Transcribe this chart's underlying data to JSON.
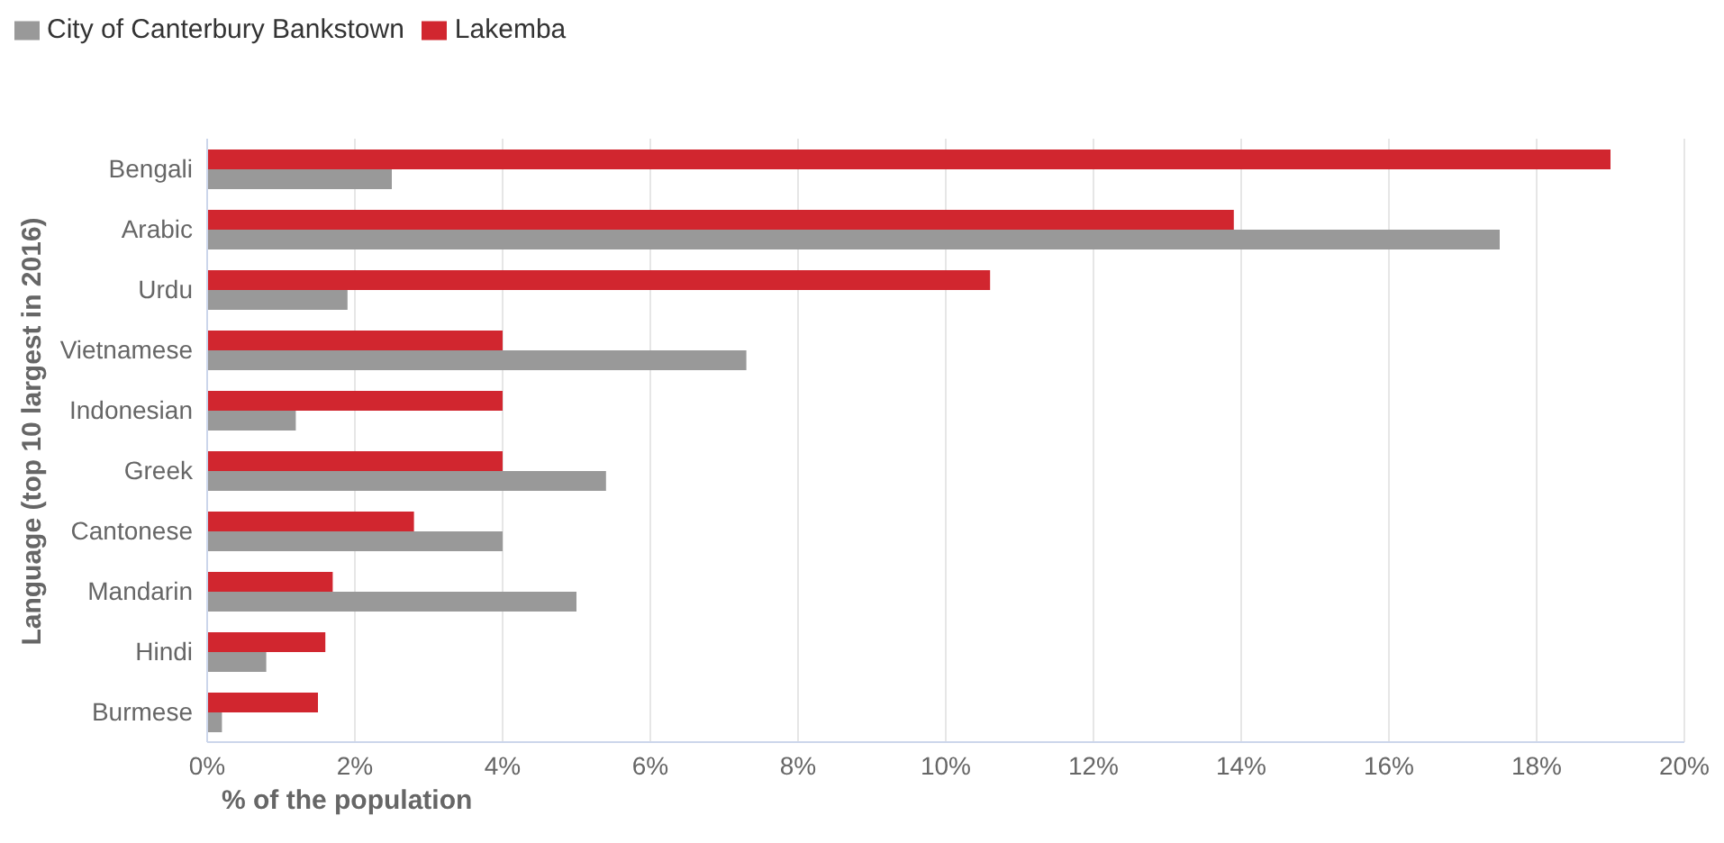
{
  "chart_data": {
    "type": "bar",
    "orientation": "horizontal",
    "xlabel": "% of the population",
    "ylabel": "Language (top 10 largest in 2016)",
    "categories": [
      "Bengali",
      "Arabic",
      "Urdu",
      "Vietnamese",
      "Indonesian",
      "Greek",
      "Cantonese",
      "Mandarin",
      "Hindi",
      "Burmese"
    ],
    "series": [
      {
        "name": "Lakemba",
        "color": "#d1262f",
        "values": [
          19.0,
          13.9,
          10.6,
          4.0,
          4.0,
          4.0,
          2.8,
          1.7,
          1.6,
          1.5
        ]
      },
      {
        "name": "City of Canterbury Bankstown",
        "color": "#999999",
        "values": [
          2.5,
          17.5,
          1.9,
          7.3,
          1.2,
          5.4,
          4.0,
          5.0,
          0.8,
          0.2
        ]
      }
    ],
    "xlim": [
      0,
      20
    ],
    "xticks": [
      {
        "value": 0,
        "label": "0%"
      },
      {
        "value": 2,
        "label": "2%"
      },
      {
        "value": 4,
        "label": "4%"
      },
      {
        "value": 6,
        "label": "6%"
      },
      {
        "value": 8,
        "label": "8%"
      },
      {
        "value": 10,
        "label": "10%"
      },
      {
        "value": 12,
        "label": "12%"
      },
      {
        "value": 14,
        "label": "14%"
      },
      {
        "value": 16,
        "label": "16%"
      },
      {
        "value": 18,
        "label": "18%"
      },
      {
        "value": 20,
        "label": "20%"
      }
    ],
    "grid": "x",
    "legend": "top left"
  }
}
